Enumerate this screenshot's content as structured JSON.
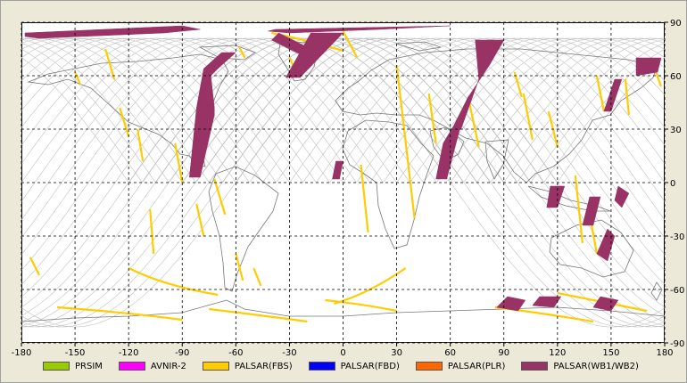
{
  "map": {
    "lon_ticks": [
      "-180",
      "-150",
      "-120",
      "-90",
      "-60",
      "-30",
      "0",
      "30",
      "60",
      "90",
      "120",
      "150",
      "180"
    ],
    "lat_ticks": [
      "90",
      "60",
      "30",
      "0",
      "-30",
      "-60",
      "-90"
    ],
    "lon_range": [
      -180,
      180
    ],
    "lat_range": [
      -90,
      90
    ],
    "grid": true,
    "grid_style": "dashed",
    "orbit_track_color": "#c0c0c0",
    "coastline_color": "#777777"
  },
  "legend": {
    "items": [
      {
        "label": "PRSIM",
        "color": "#99cc00"
      },
      {
        "label": "AVNIR-2",
        "color": "#ff00ff"
      },
      {
        "label": "PALSAR(FBS)",
        "color": "#ffcc00"
      },
      {
        "label": "PALSAR(FBD)",
        "color": "#0000ff"
      },
      {
        "label": "PALSAR(PLR)",
        "color": "#ff6600"
      },
      {
        "label": "PALSAR(WB1/WB2)",
        "color": "#993366"
      }
    ]
  },
  "coverage": {
    "fbs_color": "#ffcc00",
    "wb_color": "#993366"
  }
}
